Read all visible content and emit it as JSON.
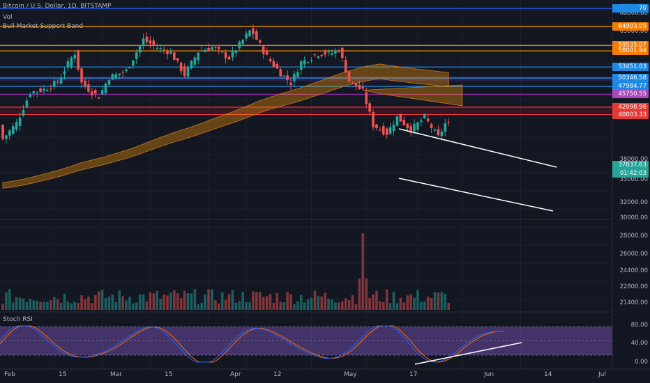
{
  "header": {
    "symbol": "Bitcoin / U.S. Dollar, 1D, BITSTAMP",
    "vol_label": "Vol",
    "indicator_label": "Bull Market Support Band"
  },
  "rsi": {
    "label": "Stoch RSI"
  },
  "currency_button": "USD",
  "last_price": {
    "value": "37037.63",
    "countdown": "01:42:03",
    "color": "#26a69a"
  },
  "price_levels": [
    {
      "value": 70000,
      "label": "70",
      "color": "#2962ff",
      "tag": "#1e88e5"
    },
    {
      "value": 64903.05,
      "label": "64903.05",
      "color": "#ff9800",
      "tag": "#f57c00"
    },
    {
      "value": 59535.07,
      "label": "59535.07",
      "color": "#ff9800",
      "tag": "#f57c00"
    },
    {
      "value": 58001.94,
      "label": "58001.94",
      "color": "#ff9800",
      "tag": "#f57c00"
    },
    {
      "value": 53451.03,
      "label": "53451.03",
      "color": "#2196f3",
      "tag": "#1e88e5"
    },
    {
      "value": 50346.58,
      "label": "50346.58",
      "color": "#2196f3",
      "tag": "#1e88e5"
    },
    {
      "value": 47984.77,
      "label": "47984.77",
      "color": "#2196f3",
      "tag": "#1e88e5"
    },
    {
      "value": 45750.55,
      "label": "45750.55",
      "color": "#9c27b0",
      "tag": "#ab47bc"
    },
    {
      "value": 42098.96,
      "label": "42098.96",
      "color": "#f23645",
      "tag": "#e53935"
    },
    {
      "value": 40003.33,
      "label": "40003.33",
      "color": "#f23645",
      "tag": "#e53935"
    }
  ],
  "price_axis_ticks": [
    "68000.00",
    "63000.00",
    "38000.00",
    "35000.00",
    "32000.00",
    "30000.00",
    "28000.00",
    "26000.00",
    "24400.00",
    "22800.00",
    "21400.00"
  ],
  "rsi_axis_ticks": [
    "80.00",
    "40.00",
    "0.00"
  ],
  "x_labels": [
    "Feb",
    "15",
    "Mar",
    "15",
    "Apr",
    "12",
    "May",
    "17",
    "Jun",
    "14",
    "Jul"
  ],
  "colors": {
    "up": "#26a69a",
    "down": "#ef5350",
    "background": "#131722",
    "band": "#ff9800",
    "rsi_k": "#2962ff",
    "rsi_d": "#ff6d00"
  },
  "chart_data": {
    "type": "candlestick",
    "symbol": "Bitcoin / U.S. Dollar",
    "interval": "1D",
    "exchange": "BITSTAMP",
    "x_range": [
      "2021-01-31",
      "2021-07-04"
    ],
    "y_range": [
      29000,
      70000
    ],
    "close_series": [
      {
        "date": "2021-01-31",
        "close": 33100
      },
      {
        "date": "2021-02-04",
        "close": 37600
      },
      {
        "date": "2021-02-08",
        "close": 46300
      },
      {
        "date": "2021-02-12",
        "close": 47100
      },
      {
        "date": "2021-02-16",
        "close": 49200
      },
      {
        "date": "2021-02-20",
        "close": 56000
      },
      {
        "date": "2021-02-21",
        "close": 57400
      },
      {
        "date": "2021-02-23",
        "close": 48900
      },
      {
        "date": "2021-02-26",
        "close": 46300
      },
      {
        "date": "2021-02-28",
        "close": 45100
      },
      {
        "date": "2021-03-03",
        "close": 50500
      },
      {
        "date": "2021-03-08",
        "close": 52400
      },
      {
        "date": "2021-03-13",
        "close": 61200
      },
      {
        "date": "2021-03-17",
        "close": 58900
      },
      {
        "date": "2021-03-21",
        "close": 57500
      },
      {
        "date": "2021-03-25",
        "close": 51300
      },
      {
        "date": "2021-03-29",
        "close": 57800
      },
      {
        "date": "2021-04-02",
        "close": 59000
      },
      {
        "date": "2021-04-07",
        "close": 56000
      },
      {
        "date": "2021-04-13",
        "close": 63600
      },
      {
        "date": "2021-04-14",
        "close": 62900
      },
      {
        "date": "2021-04-18",
        "close": 56300
      },
      {
        "date": "2021-04-22",
        "close": 51700
      },
      {
        "date": "2021-04-25",
        "close": 49000
      },
      {
        "date": "2021-04-28",
        "close": 54800
      },
      {
        "date": "2021-05-03",
        "close": 57200
      },
      {
        "date": "2021-05-07",
        "close": 57400
      },
      {
        "date": "2021-05-09",
        "close": 58500
      },
      {
        "date": "2021-05-12",
        "close": 49600
      },
      {
        "date": "2021-05-16",
        "close": 46500
      },
      {
        "date": "2021-05-19",
        "close": 37000
      },
      {
        "date": "2021-05-23",
        "close": 34700
      },
      {
        "date": "2021-05-26",
        "close": 39300
      },
      {
        "date": "2021-05-30",
        "close": 35700
      },
      {
        "date": "2021-06-03",
        "close": 39200
      },
      {
        "date": "2021-06-07",
        "close": 33600
      },
      {
        "date": "2021-06-09",
        "close": 37400
      },
      {
        "date": "2021-06-10",
        "close": 37037.63
      }
    ]
  }
}
